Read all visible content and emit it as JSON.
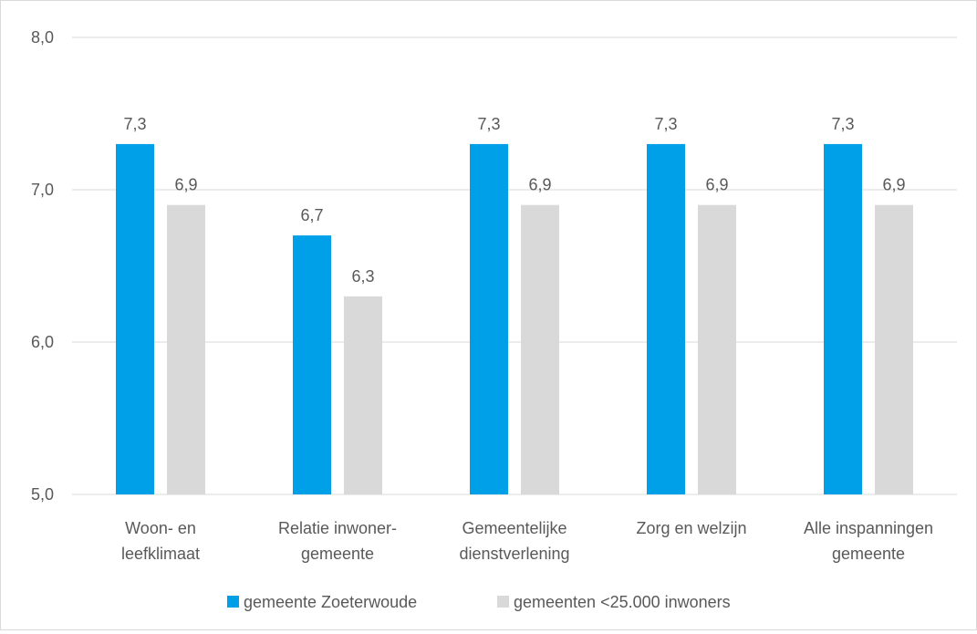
{
  "chart_data": {
    "type": "bar",
    "categories": [
      [
        "Woon- en",
        "leefklimaat"
      ],
      [
        "Relatie inwoner-",
        "gemeente"
      ],
      [
        "Gemeentelijke",
        "dienstverlening"
      ],
      [
        "Zorg en welzijn"
      ],
      [
        "Alle inspanningen",
        "gemeente"
      ]
    ],
    "series": [
      {
        "name": "gemeente Zoeterwoude",
        "color": "#00a0e8",
        "values": [
          7.3,
          6.7,
          7.3,
          7.3,
          7.3
        ],
        "labels": [
          "7,3",
          "6,7",
          "7,3",
          "7,3",
          "7,3"
        ]
      },
      {
        "name": "gemeenten <25.000 inwoners",
        "color": "#d9d9d9",
        "values": [
          6.9,
          6.3,
          6.9,
          6.9,
          6.9
        ],
        "labels": [
          "6,9",
          "6,3",
          "6,9",
          "6,9",
          "6,9"
        ]
      }
    ],
    "ylim": [
      5.0,
      8.0
    ],
    "yticks": [
      5.0,
      6.0,
      7.0,
      8.0
    ],
    "ytick_labels": [
      "5,0",
      "6,0",
      "7,0",
      "8,0"
    ],
    "grid": true,
    "legend_position": "bottom",
    "title": "",
    "xlabel": "",
    "ylabel": ""
  }
}
